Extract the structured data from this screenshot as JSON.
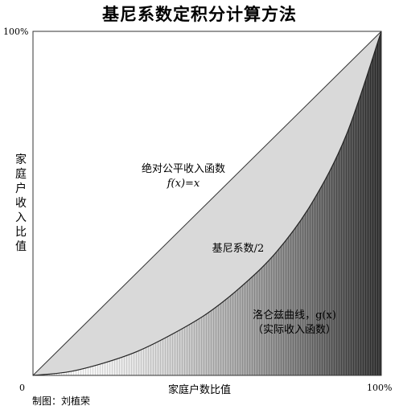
{
  "title": "基尼系数定积分计算方法",
  "axes": {
    "y_top": "100%",
    "y_label": "家庭户收入比值",
    "x_origin": "0",
    "x_end": "100%",
    "x_label": "家庭户数比值"
  },
  "labels": {
    "equality_line": "绝对公平收入函数",
    "equality_formula": "f(x)=x",
    "gini_region": "基尼系数/2",
    "lorenz_line1": "洛仑兹曲线，g(x)",
    "lorenz_line2": "（实际收入函数）"
  },
  "credit": "制图：刘植荣",
  "colors": {
    "between_fill": "#d9d9d9",
    "border": "#333333"
  },
  "chart_data": {
    "type": "area",
    "x": [
      0,
      0.1,
      0.2,
      0.3,
      0.4,
      0.5,
      0.6,
      0.7,
      0.8,
      0.9,
      1.0
    ],
    "series": [
      {
        "name": "f(x)=x",
        "values": [
          0,
          0.1,
          0.2,
          0.3,
          0.4,
          0.5,
          0.6,
          0.7,
          0.8,
          0.9,
          1.0
        ]
      },
      {
        "name": "g(x)",
        "values": [
          0,
          0.01,
          0.035,
          0.07,
          0.12,
          0.18,
          0.26,
          0.36,
          0.5,
          0.7,
          1.0
        ]
      }
    ],
    "xlim": [
      0,
      1
    ],
    "ylim": [
      0,
      1
    ]
  }
}
